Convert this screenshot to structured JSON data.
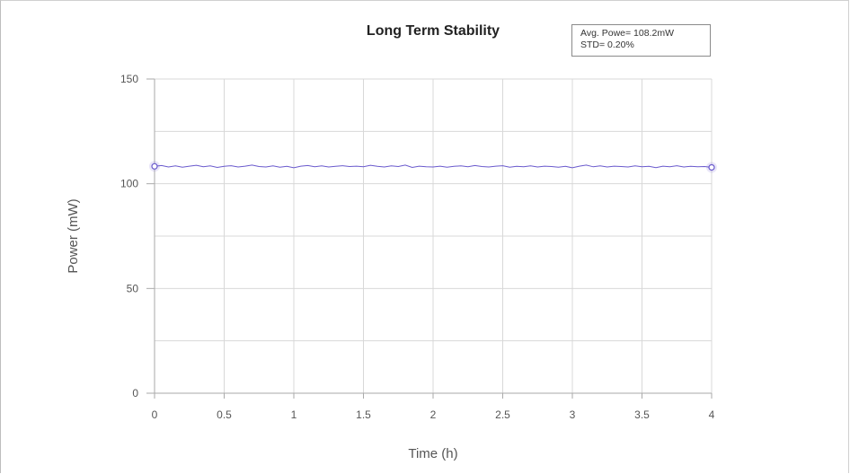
{
  "chart_data": {
    "type": "line",
    "title": "Long Term Stability",
    "xlabel": "Time (h)",
    "ylabel": "Power (mW)",
    "xlim": [
      0,
      4
    ],
    "ylim": [
      0,
      150
    ],
    "xticks": [
      "0",
      "0.5",
      "1",
      "1.5",
      "2",
      "2.5",
      "3",
      "3.5",
      "4"
    ],
    "yticks": [
      "0",
      "50",
      "100",
      "150"
    ],
    "grid": true,
    "annotation": {
      "line1": "Avg. Powe= 108.2mW",
      "line2": "STD= 0.20%"
    },
    "colors": {
      "line": "#6a5acd",
      "grid": "#d8d8d8"
    },
    "series": [
      {
        "x": [
          0,
          0.05,
          0.1,
          0.15,
          0.2,
          0.25,
          0.3,
          0.35,
          0.4,
          0.45,
          0.5,
          0.55,
          0.6,
          0.65,
          0.7,
          0.75,
          0.8,
          0.85,
          0.9,
          0.95,
          1,
          1.05,
          1.1,
          1.15,
          1.2,
          1.25,
          1.3,
          1.35,
          1.4,
          1.45,
          1.5,
          1.55,
          1.6,
          1.65,
          1.7,
          1.75,
          1.8,
          1.85,
          1.9,
          1.95,
          2,
          2.05,
          2.1,
          2.15,
          2.2,
          2.25,
          2.3,
          2.35,
          2.4,
          2.45,
          2.5,
          2.55,
          2.6,
          2.65,
          2.7,
          2.75,
          2.8,
          2.85,
          2.9,
          2.95,
          3,
          3.05,
          3.1,
          3.15,
          3.2,
          3.25,
          3.3,
          3.35,
          3.4,
          3.45,
          3.5,
          3.55,
          3.6,
          3.65,
          3.7,
          3.75,
          3.8,
          3.85,
          3.9,
          3.95,
          4
        ],
        "values": [
          108.3,
          108.7,
          108.0,
          108.5,
          107.9,
          108.4,
          108.8,
          108.1,
          108.5,
          107.8,
          108.3,
          108.6,
          108.0,
          108.4,
          108.9,
          108.2,
          108.0,
          108.5,
          107.9,
          108.3,
          107.6,
          108.4,
          108.7,
          108.1,
          108.5,
          108.0,
          108.3,
          108.6,
          108.2,
          108.4,
          108.1,
          108.8,
          108.3,
          108.0,
          108.5,
          108.2,
          108.9,
          107.8,
          108.4,
          108.1,
          108.0,
          108.4,
          107.9,
          108.3,
          108.5,
          108.1,
          108.7,
          108.2,
          108.0,
          108.4,
          108.6,
          107.9,
          108.3,
          108.1,
          108.5,
          108.0,
          108.4,
          108.2,
          107.9,
          108.3,
          107.6,
          108.4,
          108.9,
          108.1,
          108.5,
          108.0,
          108.4,
          108.2,
          108.0,
          108.5,
          108.1,
          108.3,
          107.7,
          108.4,
          108.1,
          108.6,
          108.0,
          108.3,
          108.1,
          108.2,
          107.8
        ]
      }
    ]
  }
}
